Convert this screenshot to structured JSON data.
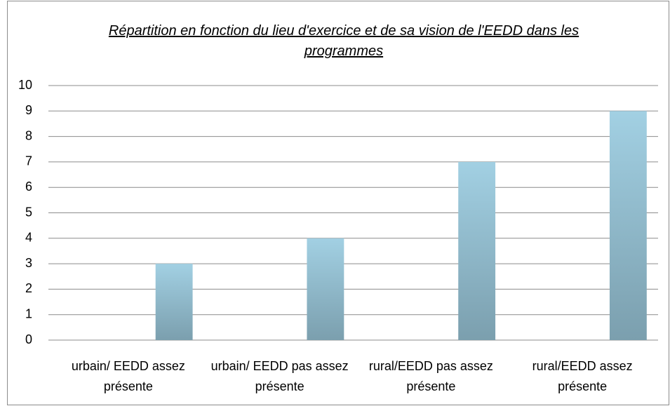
{
  "chart_data": {
    "type": "bar",
    "title": "Répartition en fonction du lieu d'exercice et de sa vision de l'EEDD dans les programmes",
    "categories": [
      "urbain/ EEDD assez présente",
      "urbain/ EEDD pas assez présente",
      "rural/EEDD pas assez présente",
      "rural/EEDD assez présente"
    ],
    "values": [
      3,
      4,
      7,
      9
    ],
    "color": "#8fbccf",
    "ylim": [
      0,
      10
    ],
    "yticks": [
      0,
      1,
      2,
      3,
      4,
      5,
      6,
      7,
      8,
      9,
      10
    ],
    "grid": true
  }
}
